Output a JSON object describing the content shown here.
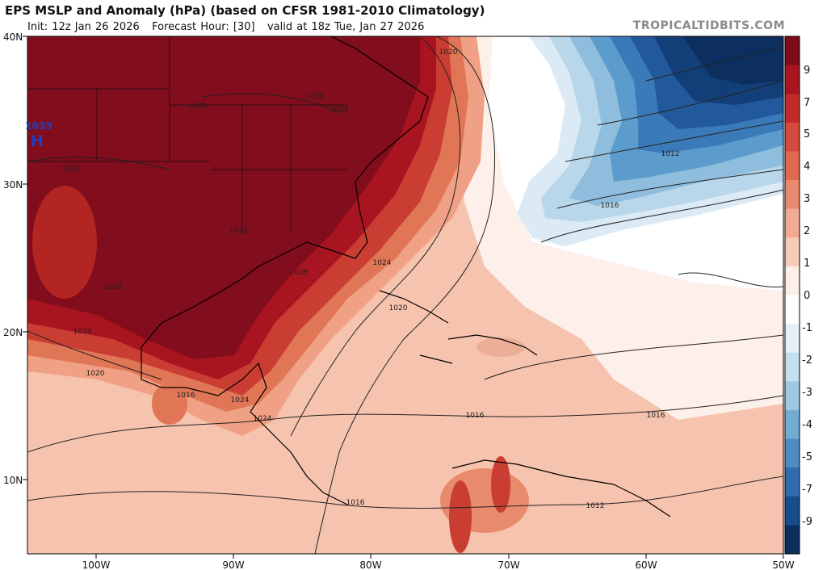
{
  "header": {
    "title": "EPS MSLP and Anomaly (hPa) (based on CFSR 1981-2010 Climatology)",
    "subtitle_parts": [
      "Init: 12z Jan 26 2026",
      "Forecast Hour: [30]",
      "valid at 18z Tue, Jan 27 2026"
    ],
    "credit": "TROPICALTIDBITS.COM"
  },
  "axes": {
    "lat_labels": [
      "40N",
      "30N",
      "20N",
      "10N"
    ],
    "lon_labels": [
      "100W",
      "90W",
      "80W",
      "70W",
      "60W",
      "50W"
    ]
  },
  "colorbar": {
    "labels": [
      "9",
      "7",
      "5",
      "4",
      "3",
      "2",
      "1",
      "0",
      "-1",
      "-2",
      "-3",
      "-4",
      "-5",
      "-7",
      "-9"
    ],
    "colors": [
      "#7a0c1c",
      "#a8141f",
      "#c12a2a",
      "#d24a3c",
      "#de6a52",
      "#e98a6e",
      "#f2ab92",
      "#f8cbb8",
      "#fdeee6",
      "#ffffff",
      "#e4eff6",
      "#c6dfee",
      "#9fc8e2",
      "#74abd3",
      "#4d8cc3",
      "#2e6baf",
      "#174c8d",
      "#0c2f5f"
    ]
  },
  "isobar_labels": [
    "1020",
    "1012",
    "1016",
    "1028",
    "1024",
    "1032",
    "1032",
    "1028",
    "1024",
    "1032",
    "1024",
    "1020",
    "1024",
    "1020",
    "1016",
    "1016",
    "1016",
    "1016",
    "1012",
    "1032",
    "1024"
  ],
  "pressure_centers": [
    {
      "label": "H",
      "value": "1035"
    }
  ]
}
